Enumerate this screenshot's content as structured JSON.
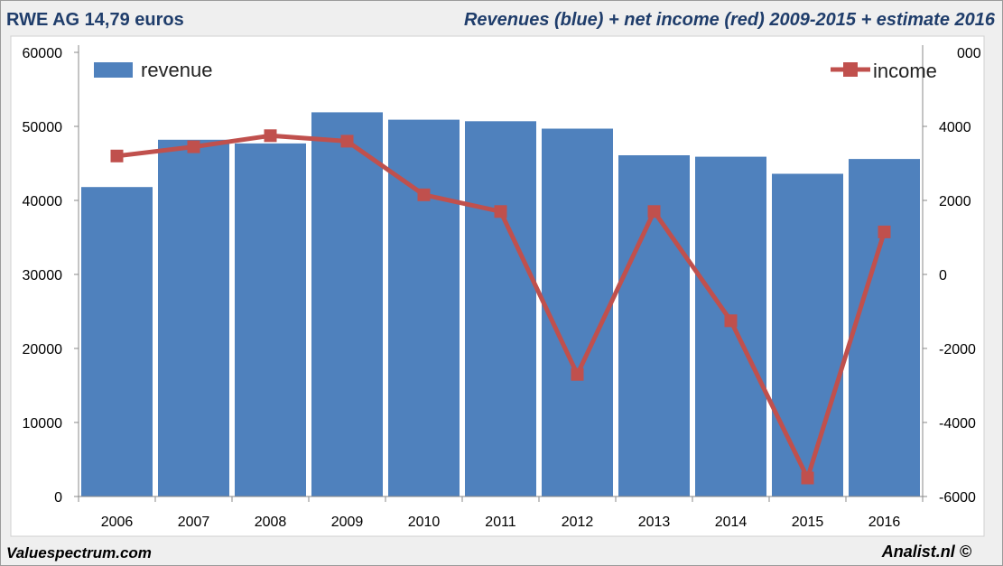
{
  "header": {
    "title_left": "RWE AG 14,79 euros",
    "title_right": "Revenues (blue) + net income (red) 2009-2015 + estimate 2016"
  },
  "footer": {
    "left": "Valuespectrum.com",
    "right": "Analist.nl ©"
  },
  "chart_data": {
    "type": "bar",
    "categories": [
      "2006",
      "2007",
      "2008",
      "2009",
      "2010",
      "2011",
      "2012",
      "2013",
      "2014",
      "2015",
      "2016"
    ],
    "series": [
      {
        "name": "revenue",
        "type": "bar",
        "axis": "left",
        "color": "#4f81bd",
        "values": [
          41800,
          48200,
          47700,
          51900,
          50900,
          50700,
          49700,
          46100,
          45900,
          43600,
          45600
        ]
      },
      {
        "name": "income",
        "type": "line",
        "axis": "right",
        "color": "#c0504d",
        "values": [
          3200,
          3450,
          3750,
          3600,
          2150,
          1700,
          -2700,
          1700,
          -1250,
          -5500,
          1150
        ]
      }
    ],
    "y_left": {
      "min": 0,
      "max": 60000,
      "ticks": [
        0,
        10000,
        20000,
        30000,
        40000,
        50000,
        60000
      ]
    },
    "y_right": {
      "min": -6000,
      "max": 6000,
      "ticks": [
        -6000,
        -4000,
        -2000,
        0,
        2000,
        4000
      ],
      "top_tick_label": "000"
    },
    "legend": {
      "revenue": "top-left",
      "income": "top-right"
    },
    "grid": false
  }
}
